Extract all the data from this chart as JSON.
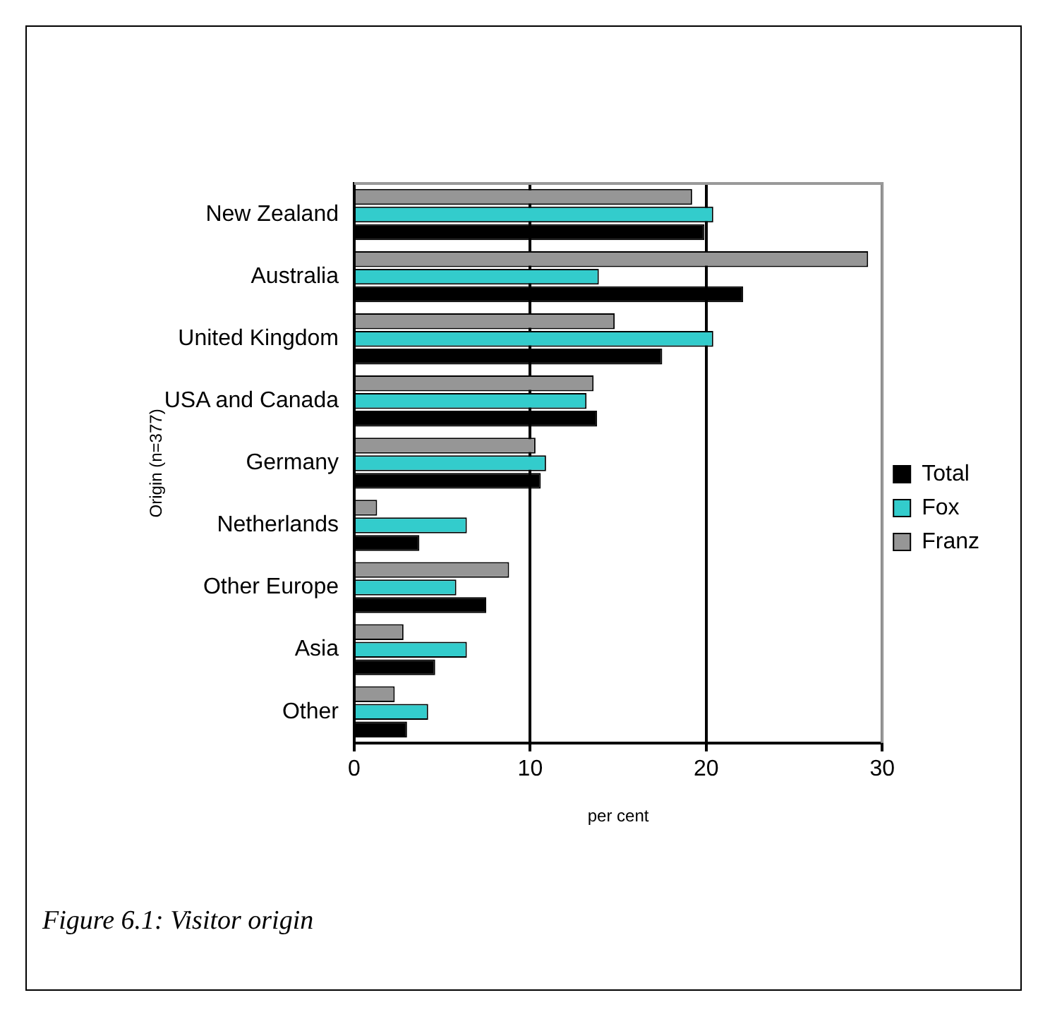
{
  "chart_data": {
    "type": "bar",
    "orientation": "horizontal",
    "xlabel": "per cent",
    "ylabel": "Origin (n=377)",
    "categories": [
      "New Zealand",
      "Australia",
      "United Kingdom",
      "USA and Canada",
      "Germany",
      "Netherlands",
      "Other Europe",
      "Asia",
      "Other"
    ],
    "series": [
      {
        "name": "Total",
        "color": "#000000",
        "values": [
          19.9,
          22.1,
          17.5,
          13.8,
          10.6,
          3.7,
          7.5,
          4.6,
          3.0
        ]
      },
      {
        "name": "Fox",
        "color": "#33cccc",
        "values": [
          20.4,
          13.9,
          20.4,
          13.2,
          10.9,
          6.4,
          5.8,
          6.4,
          4.2
        ]
      },
      {
        "name": "Franz",
        "color": "#969696",
        "values": [
          19.2,
          29.2,
          14.8,
          13.6,
          10.3,
          1.3,
          8.8,
          2.8,
          2.3
        ]
      }
    ],
    "xlim": [
      0,
      30
    ],
    "xticks": [
      0,
      10,
      20,
      30
    ],
    "grid": "x",
    "legend": "right",
    "annotations": [
      "Figure 6.1: Visitor origin"
    ]
  }
}
